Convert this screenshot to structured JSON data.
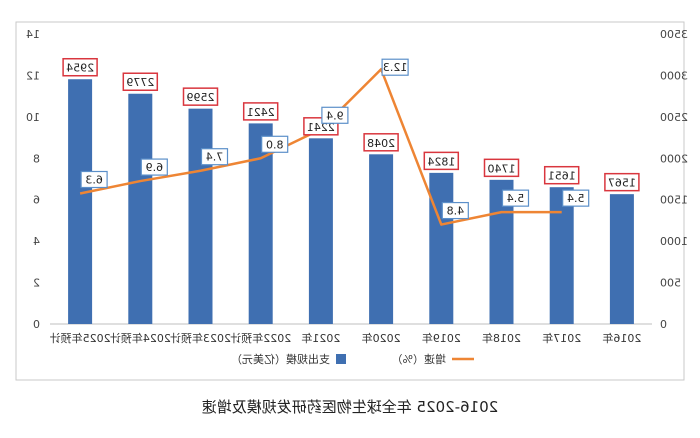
{
  "chart_data": {
    "type": "bar",
    "title": "",
    "categories": [
      "2016年",
      "2017年",
      "2018年",
      "2019年",
      "2020年",
      "2021年",
      "2022年预计",
      "2023年预计",
      "2024年预计",
      "2025年预计"
    ],
    "series": [
      {
        "name": "支出规模（亿美元）",
        "type": "bar",
        "axis": "right",
        "values": [
          1567,
          1651,
          1740,
          1824,
          2048,
          2241,
          2421,
          2599,
          2779,
          2954
        ],
        "color": "#3f6fb1"
      },
      {
        "name": "增速（%）",
        "type": "line",
        "axis": "left",
        "values": [
          null,
          5.4,
          5.4,
          4.8,
          12.3,
          9.4,
          8.0,
          7.4,
          6.9,
          6.3
        ],
        "color": "#ee8534"
      }
    ],
    "y_left": {
      "ticks": [
        0,
        2,
        4,
        6,
        8,
        10,
        12,
        14
      ],
      "ylim": [
        0,
        14
      ]
    },
    "y_right": {
      "ticks": [
        0,
        500,
        1000,
        1500,
        2000,
        2500,
        3000,
        3500
      ],
      "ylim": [
        0,
        3500
      ]
    },
    "legend_placement": "bottom",
    "grid": false
  },
  "caption": "2016-2025 年全球生物医药研发规模及增速"
}
